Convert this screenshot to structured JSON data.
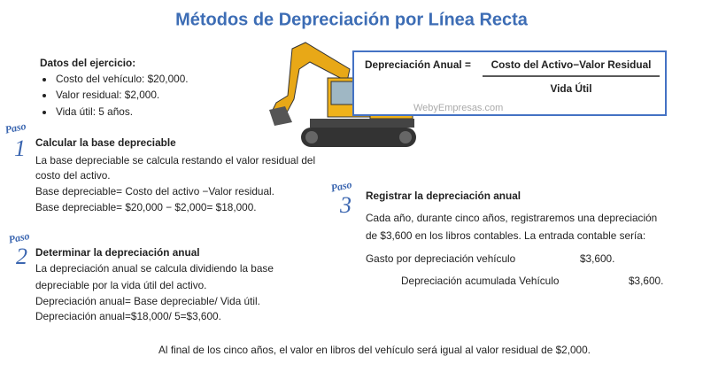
{
  "title": "Métodos de Depreciación por Línea Recta",
  "exercise": {
    "heading": "Datos del ejercicio:",
    "items": [
      "Costo del vehículo: $20,000.",
      "Valor residual: $2,000.",
      "Vida útil: 5 años."
    ]
  },
  "formula": {
    "lhs": "Depreciación Anual =",
    "numerator": "Costo del Activo−Valor Residual",
    "denominator": "Vida Útil",
    "watermark": "WebyEmpresas.com"
  },
  "steps": [
    {
      "label": "Paso",
      "number": "1",
      "heading": "Calcular la base depreciable",
      "lines": [
        "La base depreciable se calcula restando el valor residual del",
        "costo del activo.",
        "Base depreciable= Costo del activo −Valor residual.",
        "Base depreciable= $20,000 − $2,000= $18,000."
      ]
    },
    {
      "label": "Paso",
      "number": "2",
      "heading": "Determinar la depreciación anual",
      "lines": [
        "La depreciación anual se calcula dividiendo la base",
        "depreciable por la vida útil del activo.",
        "Depreciación anual= Base depreciable/ Vida útil.",
        "Depreciación anual=$18,000/ 5=$3,600."
      ]
    },
    {
      "label": "Paso",
      "number": "3",
      "heading": "Registrar la depreciación anual",
      "lines": [
        "Cada año, durante cinco años, registraremos una depreciación",
        "de $3,600 en los libros contables. La entrada contable sería:"
      ],
      "entries": [
        {
          "account": "Gasto por depreciación vehículo",
          "amount": "$3,600."
        },
        {
          "account": "Depreciación acumulada Vehículo",
          "amount": "$3,600."
        }
      ]
    }
  ],
  "footer": "Al final de los cinco años, el valor en libros del vehículo será igual al valor residual de $2,000."
}
